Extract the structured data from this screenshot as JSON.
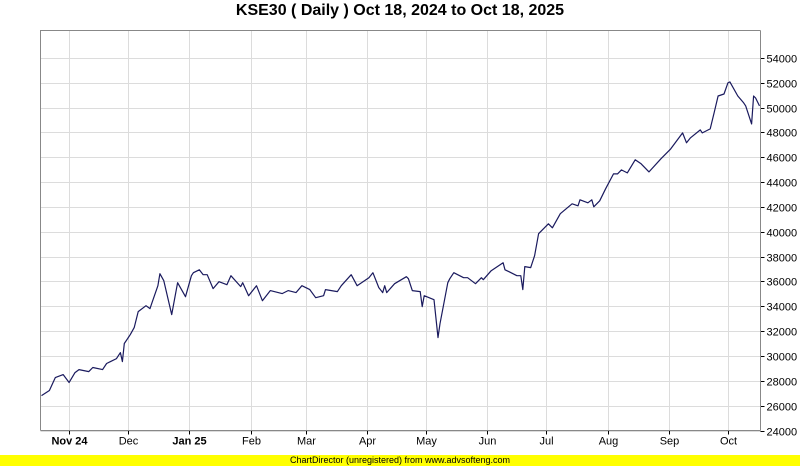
{
  "chart_data": {
    "type": "line",
    "title": "KSE30 ( Daily ) Oct 18, 2024 to Oct 18, 2025",
    "xlabel": "",
    "ylabel": "",
    "ylim": [
      24000,
      56200
    ],
    "yticks": [
      24000,
      26000,
      28000,
      30000,
      32000,
      34000,
      36000,
      38000,
      40000,
      42000,
      44000,
      46000,
      48000,
      50000,
      52000,
      54000
    ],
    "x_range": [
      "2024-10-18",
      "2025-10-17"
    ],
    "xticks": [
      {
        "date": "2024-11-01",
        "label": "Nov 24",
        "bold": true
      },
      {
        "date": "2024-12-01",
        "label": "Dec",
        "bold": false
      },
      {
        "date": "2025-01-01",
        "label": "Jan 25",
        "bold": true
      },
      {
        "date": "2025-02-01",
        "label": "Feb",
        "bold": false
      },
      {
        "date": "2025-03-01",
        "label": "Mar",
        "bold": false
      },
      {
        "date": "2025-04-01",
        "label": "Apr",
        "bold": false
      },
      {
        "date": "2025-05-01",
        "label": "May",
        "bold": false
      },
      {
        "date": "2025-06-01",
        "label": "Jun",
        "bold": false
      },
      {
        "date": "2025-07-01",
        "label": "Jul",
        "bold": false
      },
      {
        "date": "2025-08-01",
        "label": "Aug",
        "bold": false
      },
      {
        "date": "2025-09-01",
        "label": "Sep",
        "bold": false
      },
      {
        "date": "2025-10-01",
        "label": "Oct",
        "bold": false
      }
    ],
    "grid": true,
    "line_color": "#1a1a5e",
    "series": [
      {
        "points": [
          [
            "2024-10-18",
            26810
          ],
          [
            "2024-10-22",
            27220
          ],
          [
            "2024-10-25",
            28260
          ],
          [
            "2024-10-29",
            28500
          ],
          [
            "2024-11-01",
            27860
          ],
          [
            "2024-11-04",
            28660
          ],
          [
            "2024-11-06",
            28900
          ],
          [
            "2024-11-11",
            28740
          ],
          [
            "2024-11-13",
            29070
          ],
          [
            "2024-11-18",
            28900
          ],
          [
            "2024-11-20",
            29390
          ],
          [
            "2024-11-22",
            29550
          ],
          [
            "2024-11-25",
            29790
          ],
          [
            "2024-11-27",
            30270
          ],
          [
            "2024-11-28",
            29550
          ],
          [
            "2024-11-29",
            31000
          ],
          [
            "2024-12-02",
            31720
          ],
          [
            "2024-12-04",
            32280
          ],
          [
            "2024-12-06",
            33570
          ],
          [
            "2024-12-10",
            34050
          ],
          [
            "2024-12-12",
            33810
          ],
          [
            "2024-12-13",
            34290
          ],
          [
            "2024-12-16",
            35660
          ],
          [
            "2024-12-17",
            36620
          ],
          [
            "2024-12-19",
            36060
          ],
          [
            "2024-12-23",
            33330
          ],
          [
            "2024-12-26",
            35900
          ],
          [
            "2024-12-30",
            34770
          ],
          [
            "2025-01-02",
            36460
          ],
          [
            "2025-01-03",
            36700
          ],
          [
            "2025-01-06",
            36940
          ],
          [
            "2025-01-08",
            36540
          ],
          [
            "2025-01-10",
            36540
          ],
          [
            "2025-01-13",
            35420
          ],
          [
            "2025-01-16",
            35980
          ],
          [
            "2025-01-20",
            35740
          ],
          [
            "2025-01-22",
            36460
          ],
          [
            "2025-01-27",
            35580
          ],
          [
            "2025-01-28",
            35900
          ],
          [
            "2025-01-31",
            34850
          ],
          [
            "2025-02-04",
            35660
          ],
          [
            "2025-02-07",
            34450
          ],
          [
            "2025-02-11",
            35260
          ],
          [
            "2025-02-17",
            35020
          ],
          [
            "2025-02-20",
            35260
          ],
          [
            "2025-02-24",
            35100
          ],
          [
            "2025-02-27",
            35660
          ],
          [
            "2025-03-03",
            35340
          ],
          [
            "2025-03-06",
            34690
          ],
          [
            "2025-03-10",
            34850
          ],
          [
            "2025-03-11",
            35340
          ],
          [
            "2025-03-17",
            35180
          ],
          [
            "2025-03-19",
            35660
          ],
          [
            "2025-03-24",
            36540
          ],
          [
            "2025-03-27",
            35660
          ],
          [
            "2025-04-02",
            36300
          ],
          [
            "2025-04-04",
            36700
          ],
          [
            "2025-04-07",
            35500
          ],
          [
            "2025-04-09",
            35100
          ],
          [
            "2025-04-10",
            35660
          ],
          [
            "2025-04-11",
            35100
          ],
          [
            "2025-04-15",
            35820
          ],
          [
            "2025-04-21",
            36380
          ],
          [
            "2025-04-22",
            36220
          ],
          [
            "2025-04-24",
            35260
          ],
          [
            "2025-04-28",
            35180
          ],
          [
            "2025-04-29",
            33970
          ],
          [
            "2025-04-30",
            34850
          ],
          [
            "2025-05-05",
            34530
          ],
          [
            "2025-05-07",
            31480
          ],
          [
            "2025-05-08",
            32600
          ],
          [
            "2025-05-12",
            35900
          ],
          [
            "2025-05-13",
            36220
          ],
          [
            "2025-05-15",
            36700
          ],
          [
            "2025-05-20",
            36300
          ],
          [
            "2025-05-22",
            36300
          ],
          [
            "2025-05-26",
            35820
          ],
          [
            "2025-05-29",
            36300
          ],
          [
            "2025-05-30",
            36140
          ],
          [
            "2025-06-03",
            36860
          ],
          [
            "2025-06-09",
            37510
          ],
          [
            "2025-06-10",
            36940
          ],
          [
            "2025-06-12",
            36780
          ],
          [
            "2025-06-16",
            36460
          ],
          [
            "2025-06-18",
            36460
          ],
          [
            "2025-06-19",
            35340
          ],
          [
            "2025-06-20",
            37190
          ],
          [
            "2025-06-23",
            37110
          ],
          [
            "2025-06-25",
            38070
          ],
          [
            "2025-06-27",
            39840
          ],
          [
            "2025-07-02",
            40640
          ],
          [
            "2025-07-04",
            40320
          ],
          [
            "2025-07-08",
            41450
          ],
          [
            "2025-07-14",
            42250
          ],
          [
            "2025-07-17",
            42090
          ],
          [
            "2025-07-18",
            42570
          ],
          [
            "2025-07-22",
            42330
          ],
          [
            "2025-07-24",
            42570
          ],
          [
            "2025-07-25",
            42010
          ],
          [
            "2025-07-28",
            42490
          ],
          [
            "2025-07-31",
            43460
          ],
          [
            "2025-08-04",
            44660
          ],
          [
            "2025-08-06",
            44660
          ],
          [
            "2025-08-08",
            44980
          ],
          [
            "2025-08-11",
            44740
          ],
          [
            "2025-08-15",
            45790
          ],
          [
            "2025-08-18",
            45470
          ],
          [
            "2025-08-22",
            44820
          ],
          [
            "2025-08-28",
            45870
          ],
          [
            "2025-09-02",
            46670
          ],
          [
            "2025-09-08",
            47960
          ],
          [
            "2025-09-10",
            47160
          ],
          [
            "2025-09-12",
            47560
          ],
          [
            "2025-09-17",
            48200
          ],
          [
            "2025-09-18",
            47960
          ],
          [
            "2025-09-22",
            48280
          ],
          [
            "2025-09-24",
            49570
          ],
          [
            "2025-09-26",
            50930
          ],
          [
            "2025-09-29",
            51090
          ],
          [
            "2025-10-01",
            51980
          ],
          [
            "2025-10-02",
            52060
          ],
          [
            "2025-10-06",
            50930
          ],
          [
            "2025-10-09",
            50370
          ],
          [
            "2025-10-10",
            50130
          ],
          [
            "2025-10-13",
            48680
          ],
          [
            "2025-10-14",
            50930
          ],
          [
            "2025-10-15",
            50770
          ],
          [
            "2025-10-17",
            50130
          ]
        ]
      }
    ]
  },
  "footer": "ChartDirector (unregistered) from www.advsofteng.com"
}
